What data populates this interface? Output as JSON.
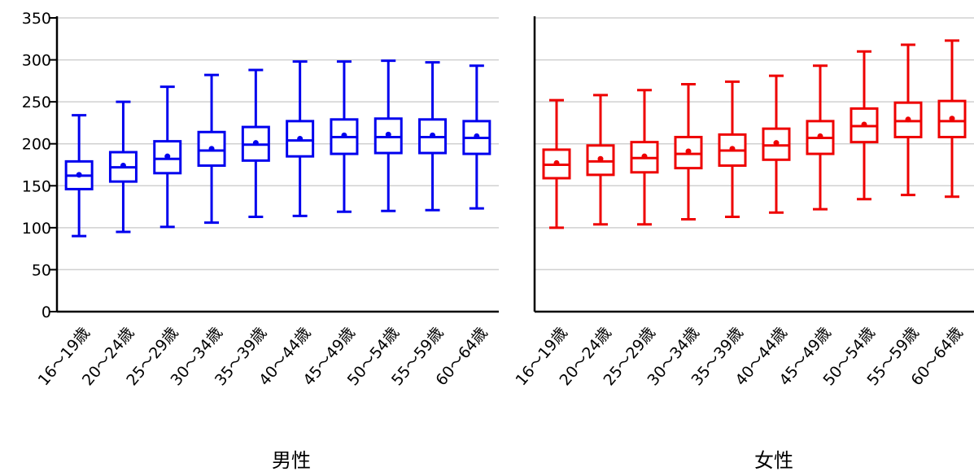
{
  "chart_data": {
    "type": "box",
    "categories": [
      "16～19歳",
      "20～24歳",
      "25～29歳",
      "30～34歳",
      "35～39歳",
      "40～44歳",
      "45～49歳",
      "50～54歳",
      "55～59歳",
      "60～64歳"
    ],
    "ylim": [
      0,
      350
    ],
    "yticks": [
      0,
      50,
      100,
      150,
      200,
      250,
      300,
      350
    ],
    "grid": true,
    "panels": [
      {
        "title": "男性",
        "color": "#0000ee",
        "boxes": [
          {
            "min": 90,
            "q1": 146,
            "median": 162,
            "q3": 179,
            "max": 234,
            "mean": 163
          },
          {
            "min": 95,
            "q1": 155,
            "median": 172,
            "q3": 190,
            "max": 250,
            "mean": 174
          },
          {
            "min": 101,
            "q1": 165,
            "median": 182,
            "q3": 203,
            "max": 268,
            "mean": 185
          },
          {
            "min": 106,
            "q1": 174,
            "median": 192,
            "q3": 214,
            "max": 282,
            "mean": 194
          },
          {
            "min": 113,
            "q1": 180,
            "median": 199,
            "q3": 220,
            "max": 288,
            "mean": 201
          },
          {
            "min": 114,
            "q1": 185,
            "median": 204,
            "q3": 227,
            "max": 298,
            "mean": 206
          },
          {
            "min": 119,
            "q1": 188,
            "median": 208,
            "q3": 229,
            "max": 298,
            "mean": 210
          },
          {
            "min": 120,
            "q1": 189,
            "median": 208,
            "q3": 230,
            "max": 299,
            "mean": 211
          },
          {
            "min": 121,
            "q1": 189,
            "median": 208,
            "q3": 229,
            "max": 297,
            "mean": 210
          },
          {
            "min": 123,
            "q1": 188,
            "median": 207,
            "q3": 227,
            "max": 293,
            "mean": 209
          }
        ]
      },
      {
        "title": "女性",
        "color": "#ee0000",
        "boxes": [
          {
            "min": 100,
            "q1": 159,
            "median": 175,
            "q3": 193,
            "max": 252,
            "mean": 177
          },
          {
            "min": 104,
            "q1": 163,
            "median": 179,
            "q3": 198,
            "max": 258,
            "mean": 182
          },
          {
            "min": 104,
            "q1": 166,
            "median": 183,
            "q3": 202,
            "max": 264,
            "mean": 185
          },
          {
            "min": 110,
            "q1": 171,
            "median": 188,
            "q3": 208,
            "max": 271,
            "mean": 191
          },
          {
            "min": 113,
            "q1": 174,
            "median": 192,
            "q3": 211,
            "max": 274,
            "mean": 194
          },
          {
            "min": 118,
            "q1": 181,
            "median": 198,
            "q3": 218,
            "max": 281,
            "mean": 201
          },
          {
            "min": 122,
            "q1": 188,
            "median": 207,
            "q3": 227,
            "max": 293,
            "mean": 209
          },
          {
            "min": 134,
            "q1": 202,
            "median": 221,
            "q3": 242,
            "max": 310,
            "mean": 223
          },
          {
            "min": 139,
            "q1": 208,
            "median": 227,
            "q3": 249,
            "max": 318,
            "mean": 229
          },
          {
            "min": 137,
            "q1": 208,
            "median": 227,
            "q3": 251,
            "max": 323,
            "mean": 230
          }
        ]
      }
    ]
  }
}
